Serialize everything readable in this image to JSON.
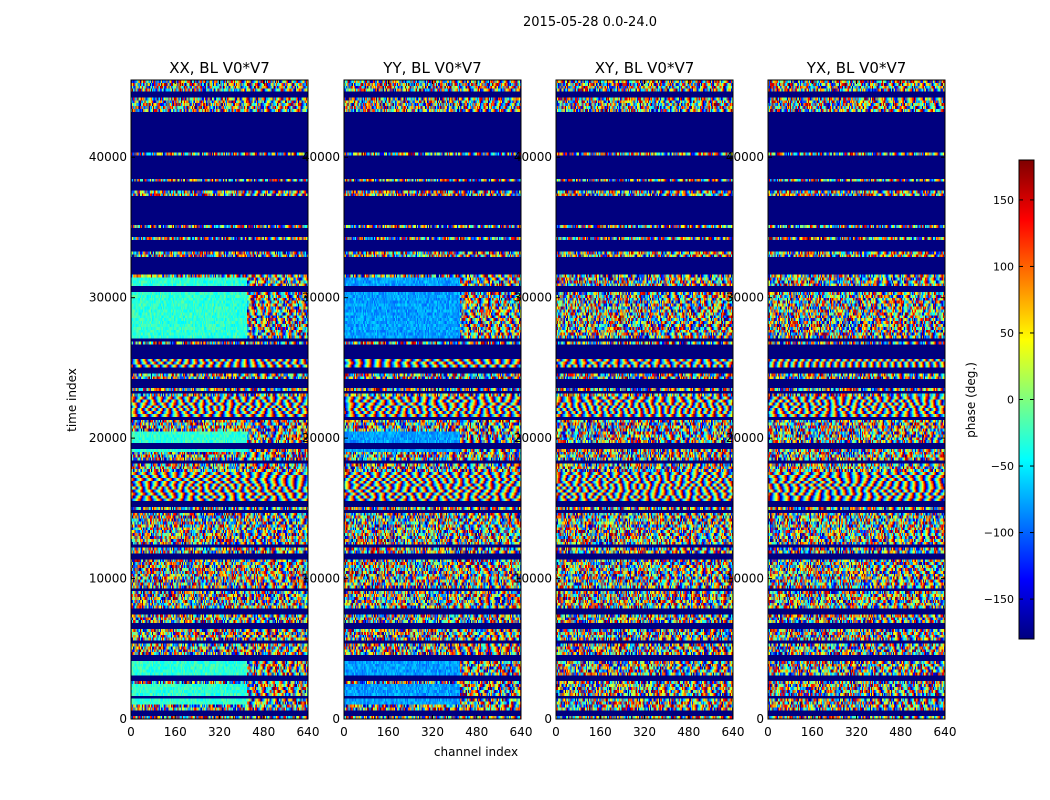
{
  "figure_title": "2015-05-28 0.0-24.0",
  "chart_data": {
    "type": "heatmap",
    "suptitle": "2015-05-28 0.0-24.0",
    "xlabel": "channel index",
    "ylabel": "time index",
    "xlim": [
      0,
      640
    ],
    "ylim": [
      0,
      45500
    ],
    "xticks": [
      0,
      160,
      320,
      480,
      640
    ],
    "yticks": [
      0,
      10000,
      20000,
      30000,
      40000
    ],
    "panels": [
      {
        "title": "XX, BL V0*V7",
        "pol": "XX"
      },
      {
        "title": "YY, BL V0*V7",
        "pol": "YY"
      },
      {
        "title": "XY, BL V0*V7",
        "pol": "XY"
      },
      {
        "title": "YX, BL V0*V7",
        "pol": "YX"
      }
    ],
    "colorbar": {
      "label": "phase (deg.)",
      "range": [
        -180,
        180
      ],
      "ticks": [
        -150,
        -100,
        -50,
        0,
        50,
        100,
        150
      ],
      "tick_labels": [
        "−150",
        "−100",
        "−50",
        "0",
        "50",
        "100",
        "150"
      ],
      "colormap": [
        "#00007f",
        "#0000ff",
        "#007fff",
        "#00ffff",
        "#7fff7f",
        "#ffff00",
        "#ff7f00",
        "#ff0000",
        "#7f0000"
      ]
    },
    "flagged_time_bands": [
      [
        44300,
        44700
      ],
      [
        43100,
        43300
      ],
      [
        41800,
        43000
      ],
      [
        40300,
        41700
      ],
      [
        39300,
        40200
      ],
      [
        38500,
        39200
      ],
      [
        37600,
        38300
      ],
      [
        35100,
        37200
      ],
      [
        34300,
        35000
      ],
      [
        33400,
        34100
      ],
      [
        31600,
        32900
      ],
      [
        30500,
        30800
      ],
      [
        26800,
        27100
      ],
      [
        25600,
        26600
      ],
      [
        24700,
        25100
      ],
      [
        23600,
        24200
      ],
      [
        23100,
        23300
      ],
      [
        21300,
        21600
      ],
      [
        19300,
        19600
      ],
      [
        18300,
        18500
      ],
      [
        15200,
        15600
      ],
      [
        14700,
        14900
      ],
      [
        12200,
        12500
      ],
      [
        11300,
        11700
      ],
      [
        9200,
        9400
      ],
      [
        7500,
        7800
      ],
      [
        6400,
        6800
      ],
      [
        5300,
        5600
      ],
      [
        4200,
        4500
      ],
      [
        2700,
        3000
      ],
      [
        1400,
        1700
      ],
      [
        300,
        700
      ]
    ],
    "calm_time_bands": [
      [
        27000,
        31500
      ],
      [
        19000,
        20500
      ],
      [
        1000,
        2500
      ],
      [
        3200,
        4100
      ]
    ],
    "fringe_time_bands": [
      [
        15000,
        17500
      ],
      [
        25000,
        25800
      ],
      [
        21500,
        23000
      ]
    ]
  }
}
